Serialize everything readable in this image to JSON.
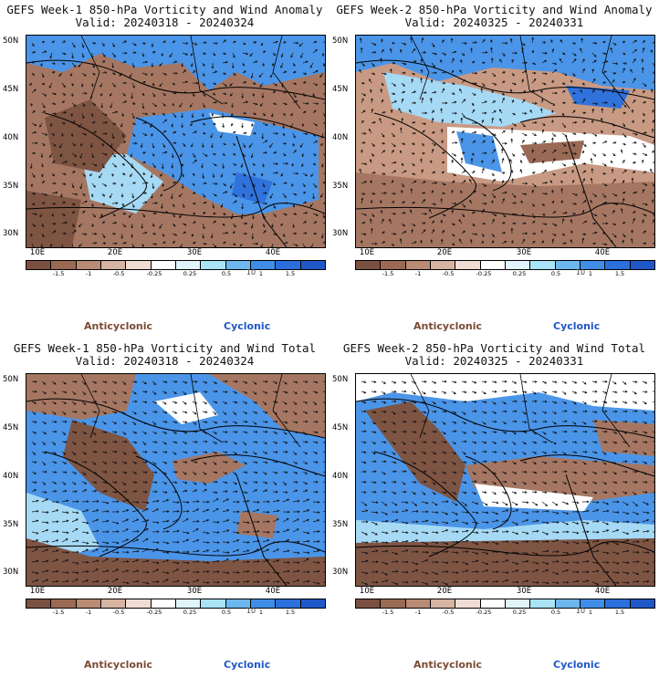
{
  "panels": [
    {
      "title_line1": "GEFS Week-1 850-hPa Vorticity and Wind Anomaly",
      "title_line2": "Valid: 20240318 - 20240324",
      "variant": "anomaly1"
    },
    {
      "title_line1": "GEFS Week-2 850-hPa Vorticity and Wind Anomaly",
      "title_line2": "Valid: 20240325 - 20240331",
      "variant": "anomaly2"
    },
    {
      "title_line1": "GEFS Week-1 850-hPa Vorticity and Wind Total",
      "title_line2": "Valid: 20240318 - 20240324",
      "variant": "total1"
    },
    {
      "title_line1": "GEFS Week-2 850-hPa Vorticity and Wind Total",
      "title_line2": "Valid: 20240325 - 20240331",
      "variant": "total2"
    }
  ],
  "lat_labels": [
    "50N",
    "45N",
    "40N",
    "35N",
    "30N"
  ],
  "lon_labels": [
    "10E",
    "20E",
    "30E",
    "40E"
  ],
  "colorbar": {
    "ticks": [
      "-1.5",
      "-1",
      "-0.5",
      "-0.25",
      "0.25",
      "0.5",
      "1",
      "1.5"
    ],
    "center_label": "10",
    "colors": [
      "#7a5040",
      "#9a6a55",
      "#b98b74",
      "#d6b4a2",
      "#efdcd2",
      "#ffffff",
      "#dff4fb",
      "#a9e3f5",
      "#6cb7ee",
      "#3f8de6",
      "#2a6fdc",
      "#1f56c8"
    ]
  },
  "legend": {
    "anticyclonic": "Anticyclonic",
    "cyclonic": "Cyclonic",
    "anticyclonic_color": "#7b4a33",
    "cyclonic_color": "#1f56c8"
  }
}
